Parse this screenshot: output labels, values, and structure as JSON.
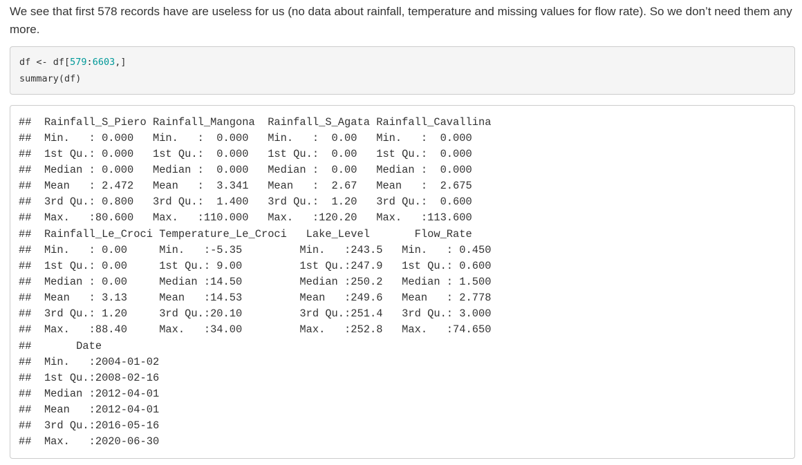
{
  "paragraph": "We see that first 578 records have are useless for us (no data about rainfall, temperature and missing values for flow rate). So we don’t need them any more.",
  "code": {
    "line1": {
      "prefix": "df <- df[",
      "num1": "579",
      "colon": ":",
      "num2": "6603",
      "suffix": ",]"
    },
    "line2": "summary(df)"
  },
  "output_lines": [
    "##  Rainfall_S_Piero Rainfall_Mangona  Rainfall_S_Agata Rainfall_Cavallina",
    "##  Min.   : 0.000   Min.   :  0.000   Min.   :  0.00   Min.   :  0.000  ",
    "##  1st Qu.: 0.000   1st Qu.:  0.000   1st Qu.:  0.00   1st Qu.:  0.000  ",
    "##  Median : 0.000   Median :  0.000   Median :  0.00   Median :  0.000  ",
    "##  Mean   : 2.472   Mean   :  3.341   Mean   :  2.67   Mean   :  2.675  ",
    "##  3rd Qu.: 0.800   3rd Qu.:  1.400   3rd Qu.:  1.20   3rd Qu.:  0.600  ",
    "##  Max.   :80.600   Max.   :110.000   Max.   :120.20   Max.   :113.600  ",
    "##  Rainfall_Le_Croci Temperature_Le_Croci   Lake_Level       Flow_Rate     ",
    "##  Min.   : 0.00     Min.   :-5.35         Min.   :243.5   Min.   : 0.450  ",
    "##  1st Qu.: 0.00     1st Qu.: 9.00         1st Qu.:247.9   1st Qu.: 0.600  ",
    "##  Median : 0.00     Median :14.50         Median :250.2   Median : 1.500  ",
    "##  Mean   : 3.13     Mean   :14.53         Mean   :249.6   Mean   : 2.778  ",
    "##  3rd Qu.: 1.20     3rd Qu.:20.10         3rd Qu.:251.4   3rd Qu.: 3.000  ",
    "##  Max.   :88.40     Max.   :34.00         Max.   :252.8   Max.   :74.650  ",
    "##       Date           ",
    "##  Min.   :2004-01-02  ",
    "##  1st Qu.:2008-02-16  ",
    "##  Median :2012-04-01  ",
    "##  Mean   :2012-04-01  ",
    "##  3rd Qu.:2016-05-16  ",
    "##  Max.   :2020-06-30  "
  ],
  "colors": {
    "text": "#333333",
    "number": "#009999",
    "code_background": "#f5f5f5",
    "border": "#cccccc"
  }
}
